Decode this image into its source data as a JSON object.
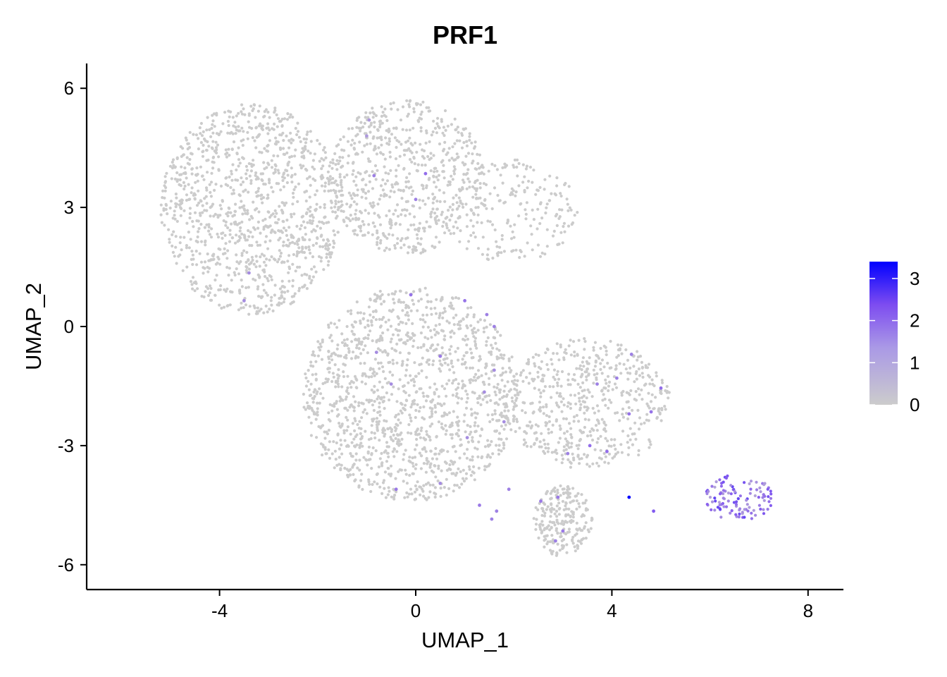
{
  "chart_data": {
    "type": "scatter",
    "title": "PRF1",
    "xlabel": "UMAP_1",
    "ylabel": "UMAP_2",
    "xlim": [
      -6.7,
      8.7
    ],
    "ylim": [
      -6.6,
      6.6
    ],
    "x_ticks": [
      -4,
      0,
      4,
      8
    ],
    "y_ticks": [
      -6,
      -3,
      0,
      3,
      6
    ],
    "grid": false,
    "legend_position": "right",
    "colorbar": {
      "low_color": "#cccccc",
      "high_color": "#0000ff",
      "min": 0,
      "max": 3.4,
      "ticks": [
        0,
        1,
        2,
        3
      ]
    },
    "clusters": [
      {
        "x_range": [
          -5.2,
          -1.5
        ],
        "y_range": [
          0.3,
          5.6
        ],
        "n": 1100,
        "expression": 0
      },
      {
        "x_range": [
          -1.8,
          1.4
        ],
        "y_range": [
          1.8,
          5.7
        ],
        "n": 650,
        "expression": 0
      },
      {
        "x_range": [
          0.6,
          3.3
        ],
        "y_range": [
          1.6,
          4.2
        ],
        "n": 200,
        "expression": 0
      },
      {
        "x_range": [
          -2.3,
          2.1
        ],
        "y_range": [
          -4.4,
          1.0
        ],
        "n": 1350,
        "expression": 0
      },
      {
        "x_range": [
          1.8,
          5.2
        ],
        "y_range": [
          -3.6,
          -0.3
        ],
        "n": 550,
        "expression": 0
      },
      {
        "x_range": [
          2.4,
          3.6
        ],
        "y_range": [
          -5.8,
          -4.0
        ],
        "n": 220,
        "expression": 0
      },
      {
        "x_range": [
          5.9,
          7.3
        ],
        "y_range": [
          -4.9,
          -3.7
        ],
        "n": 110,
        "expression": 1.6
      }
    ],
    "highlighted_points": [
      {
        "x": -0.95,
        "y": 5.2,
        "value": 0.8
      },
      {
        "x": -1.0,
        "y": 4.8,
        "value": 0.8
      },
      {
        "x": -0.85,
        "y": 3.8,
        "value": 1.2
      },
      {
        "x": 0.2,
        "y": 3.85,
        "value": 1.5
      },
      {
        "x": 0.0,
        "y": 3.2,
        "value": 1.2
      },
      {
        "x": -3.4,
        "y": 1.35,
        "value": 1.0
      },
      {
        "x": -3.5,
        "y": 0.65,
        "value": 1.0
      },
      {
        "x": -0.1,
        "y": 0.8,
        "value": 1.4
      },
      {
        "x": 1.0,
        "y": 0.65,
        "value": 1.4
      },
      {
        "x": 1.45,
        "y": 0.3,
        "value": 1.2
      },
      {
        "x": 1.6,
        "y": 0.0,
        "value": 1.2
      },
      {
        "x": -0.8,
        "y": -0.65,
        "value": 1.0
      },
      {
        "x": 0.5,
        "y": -0.75,
        "value": 1.3
      },
      {
        "x": 1.6,
        "y": -1.1,
        "value": 1.0
      },
      {
        "x": -0.5,
        "y": -1.45,
        "value": 1.0
      },
      {
        "x": 1.4,
        "y": -1.65,
        "value": 1.0
      },
      {
        "x": 1.8,
        "y": -2.4,
        "value": 1.0
      },
      {
        "x": 1.05,
        "y": -2.8,
        "value": 1.0
      },
      {
        "x": 3.1,
        "y": -3.2,
        "value": 1.2
      },
      {
        "x": 3.55,
        "y": -3.0,
        "value": 1.5
      },
      {
        "x": 3.9,
        "y": -3.15,
        "value": 1.5
      },
      {
        "x": 3.7,
        "y": -1.45,
        "value": 1.2
      },
      {
        "x": 4.1,
        "y": -1.3,
        "value": 1.2
      },
      {
        "x": 4.35,
        "y": -2.2,
        "value": 1.4
      },
      {
        "x": 4.8,
        "y": -2.15,
        "value": 1.4
      },
      {
        "x": 5.0,
        "y": -1.55,
        "value": 1.5
      },
      {
        "x": 4.4,
        "y": -0.7,
        "value": 1.2
      },
      {
        "x": -0.4,
        "y": -4.1,
        "value": 1.3
      },
      {
        "x": 0.5,
        "y": -3.95,
        "value": 1.0
      },
      {
        "x": 1.3,
        "y": -4.5,
        "value": 1.3
      },
      {
        "x": 1.65,
        "y": -4.65,
        "value": 1.2
      },
      {
        "x": 1.9,
        "y": -4.1,
        "value": 1.2
      },
      {
        "x": 2.55,
        "y": -4.4,
        "value": 1.3
      },
      {
        "x": 2.9,
        "y": -4.3,
        "value": 1.3
      },
      {
        "x": 3.0,
        "y": -5.15,
        "value": 1.3
      },
      {
        "x": 1.55,
        "y": -4.85,
        "value": 1.2
      },
      {
        "x": 2.85,
        "y": -5.4,
        "value": 1.2
      },
      {
        "x": 4.35,
        "y": -4.3,
        "value": 3.4
      },
      {
        "x": 4.85,
        "y": -4.65,
        "value": 1.8
      }
    ]
  },
  "colors": {
    "background": "#ffffff",
    "axis": "#000000",
    "low_expression": "#cccccc",
    "high_expression": "#0000ff"
  }
}
